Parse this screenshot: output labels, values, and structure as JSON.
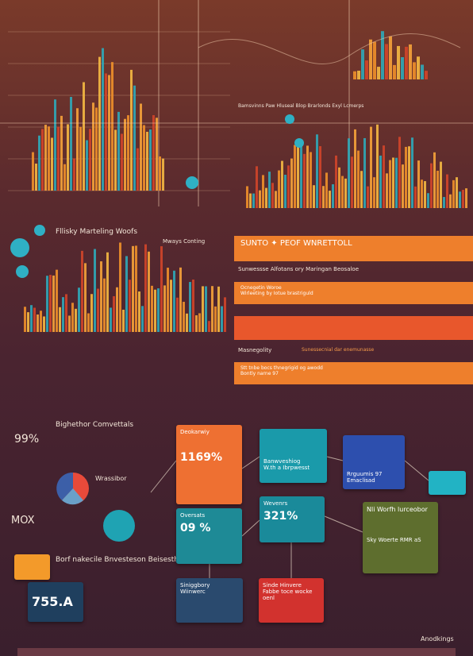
{
  "top_panel": {
    "caption": "Bamsvinns Paw Hluseal Blop Brarlonds Exyl Lcmerps"
  },
  "middle_panel": {
    "title": "Fllisky Marteling Woofs",
    "subtitle": "Mways Conting"
  },
  "banners": [
    {
      "title": "SUNTO ✦ PEOF WNRETTOLL",
      "subtitle": "Sunwessse Alfotans ory Maringan Beosaloe"
    },
    {
      "title": "Ocnegetin Woroe",
      "subtitle": "Wirleeting by Iotue brastriguld"
    },
    {
      "title": "Masnegolity",
      "subtitle": "Sunessecnial dar enemunasse"
    },
    {
      "title": "Stt tnbe bocs thnegrigid og awodd",
      "subtitle": "Bontly narne 97"
    }
  ],
  "infographic": {
    "title": "Bighethor Comvettals",
    "stat_left": "99%",
    "pie_label": "Wrassibor",
    "stat_mid": "MOX",
    "section_title": "Borf nakecile Bnvesteson Beisesthe",
    "stat_box": "755.A",
    "cards": [
      {
        "title": "Deokarwiy",
        "value": "1169%"
      },
      {
        "title": "Oversats",
        "value": "09 %"
      },
      {
        "title": "Banwveshiog",
        "value": "W.th a Ibrpwesst"
      },
      {
        "title": "Wevenrs",
        "value": "321%"
      },
      {
        "title": "Rrguumis 97",
        "value": "Emaclisad"
      },
      {
        "title": "Nli Worfh lurceobor",
        "value": "Sky Woerte RMR aS"
      },
      {
        "title": "Siniggbory",
        "value": "Wiinwerc"
      },
      {
        "title": "Sinde Hinvere",
        "value": "Fabbe toce wocke oenl"
      }
    ],
    "footer": "Anodkings"
  }
}
